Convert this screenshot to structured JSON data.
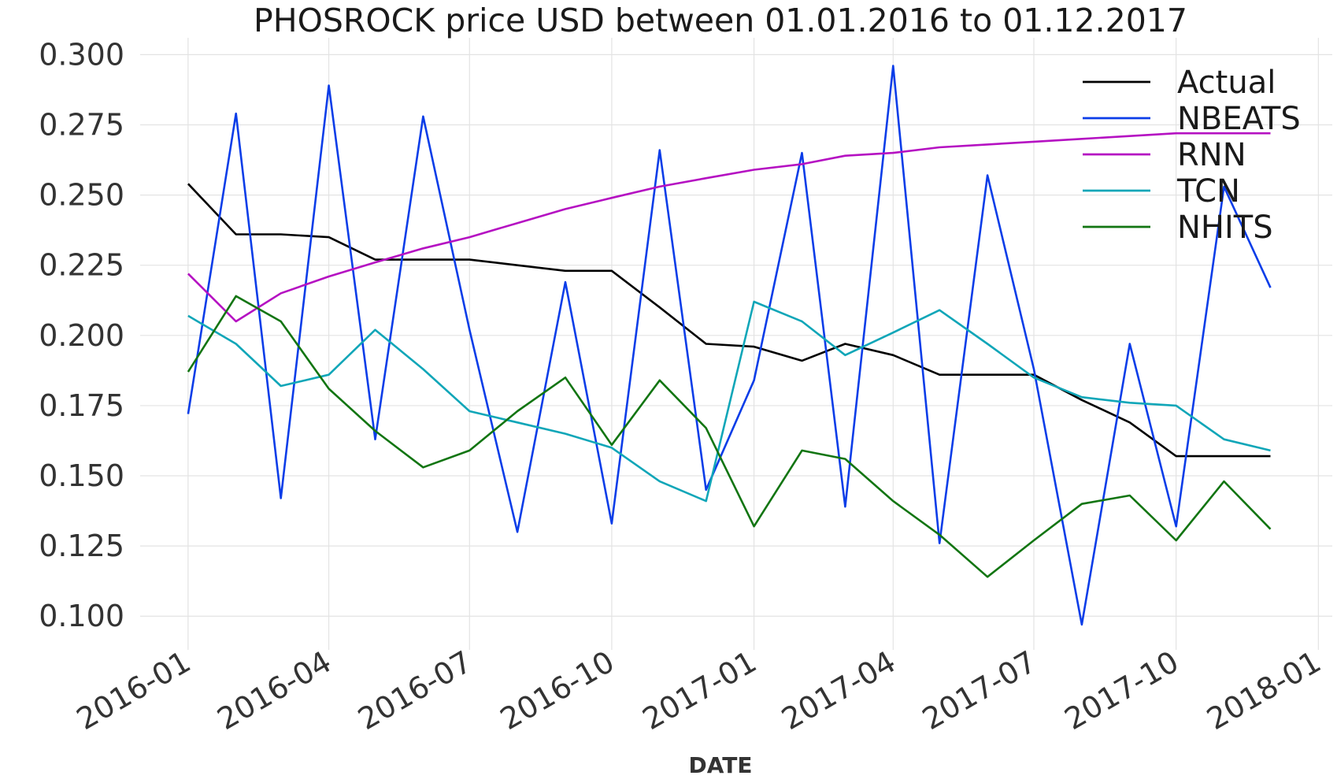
{
  "chart_data": {
    "type": "line",
    "title": "PHOSROCK price USD between 01.01.2016 to 01.12.2017",
    "xlabel": "DATE",
    "ylabel": "",
    "x_ticks": [
      "2016-01",
      "2016-04",
      "2016-07",
      "2016-10",
      "2017-01",
      "2017-04",
      "2017-07",
      "2017-10",
      "2018-01"
    ],
    "x_range": [
      "2015-12-01",
      "2018-01-10"
    ],
    "y_ticks": [
      "0.300",
      "0.275",
      "0.250",
      "0.225",
      "0.200",
      "0.175",
      "0.150",
      "0.125",
      "0.100"
    ],
    "ylim": [
      0.088,
      0.306
    ],
    "grid": true,
    "legend_position": "top-right",
    "x": [
      "2016-01-01",
      "2016-02-01",
      "2016-03-01",
      "2016-04-01",
      "2016-05-01",
      "2016-06-01",
      "2016-07-01",
      "2016-08-01",
      "2016-09-01",
      "2016-10-01",
      "2016-11-01",
      "2016-12-01",
      "2017-01-01",
      "2017-02-01",
      "2017-03-01",
      "2017-04-01",
      "2017-05-01",
      "2017-06-01",
      "2017-07-01",
      "2017-08-01",
      "2017-09-01",
      "2017-10-01",
      "2017-11-01",
      "2017-12-01"
    ],
    "series": [
      {
        "name": "Actual",
        "color": "#000000",
        "values": [
          0.254,
          0.236,
          0.236,
          0.235,
          0.227,
          0.227,
          0.227,
          0.225,
          0.223,
          0.223,
          0.21,
          0.197,
          0.196,
          0.191,
          0.197,
          0.193,
          0.186,
          0.186,
          0.186,
          0.177,
          0.169,
          0.157,
          0.157,
          0.157
        ]
      },
      {
        "name": "NBEATS",
        "color": "#0b3de8",
        "values": [
          0.172,
          0.279,
          0.142,
          0.289,
          0.163,
          0.278,
          0.202,
          0.13,
          0.219,
          0.133,
          0.266,
          0.145,
          0.184,
          0.265,
          0.139,
          0.296,
          0.126,
          0.257,
          0.188,
          0.097,
          0.197,
          0.132,
          0.253,
          0.217
        ]
      },
      {
        "name": "RNN",
        "color": "#b511c2",
        "values": [
          0.222,
          0.205,
          0.215,
          0.221,
          0.226,
          0.231,
          0.235,
          0.24,
          0.245,
          0.249,
          0.253,
          0.256,
          0.259,
          0.261,
          0.264,
          0.265,
          0.267,
          0.268,
          0.269,
          0.27,
          0.271,
          0.272,
          0.272,
          0.272
        ]
      },
      {
        "name": "TCN",
        "color": "#10a6b8",
        "values": [
          0.207,
          0.197,
          0.182,
          0.186,
          0.202,
          0.188,
          0.173,
          0.169,
          0.165,
          0.16,
          0.148,
          0.141,
          0.212,
          0.205,
          0.193,
          0.201,
          0.209,
          0.197,
          0.185,
          0.178,
          0.176,
          0.175,
          0.163,
          0.159
        ]
      },
      {
        "name": "NHITS",
        "color": "#127512",
        "values": [
          0.187,
          0.214,
          0.205,
          0.181,
          0.166,
          0.153,
          0.159,
          0.173,
          0.185,
          0.161,
          0.184,
          0.167,
          0.132,
          0.159,
          0.156,
          0.141,
          0.129,
          0.114,
          0.127,
          0.14,
          0.143,
          0.127,
          0.148,
          0.131
        ]
      }
    ]
  }
}
